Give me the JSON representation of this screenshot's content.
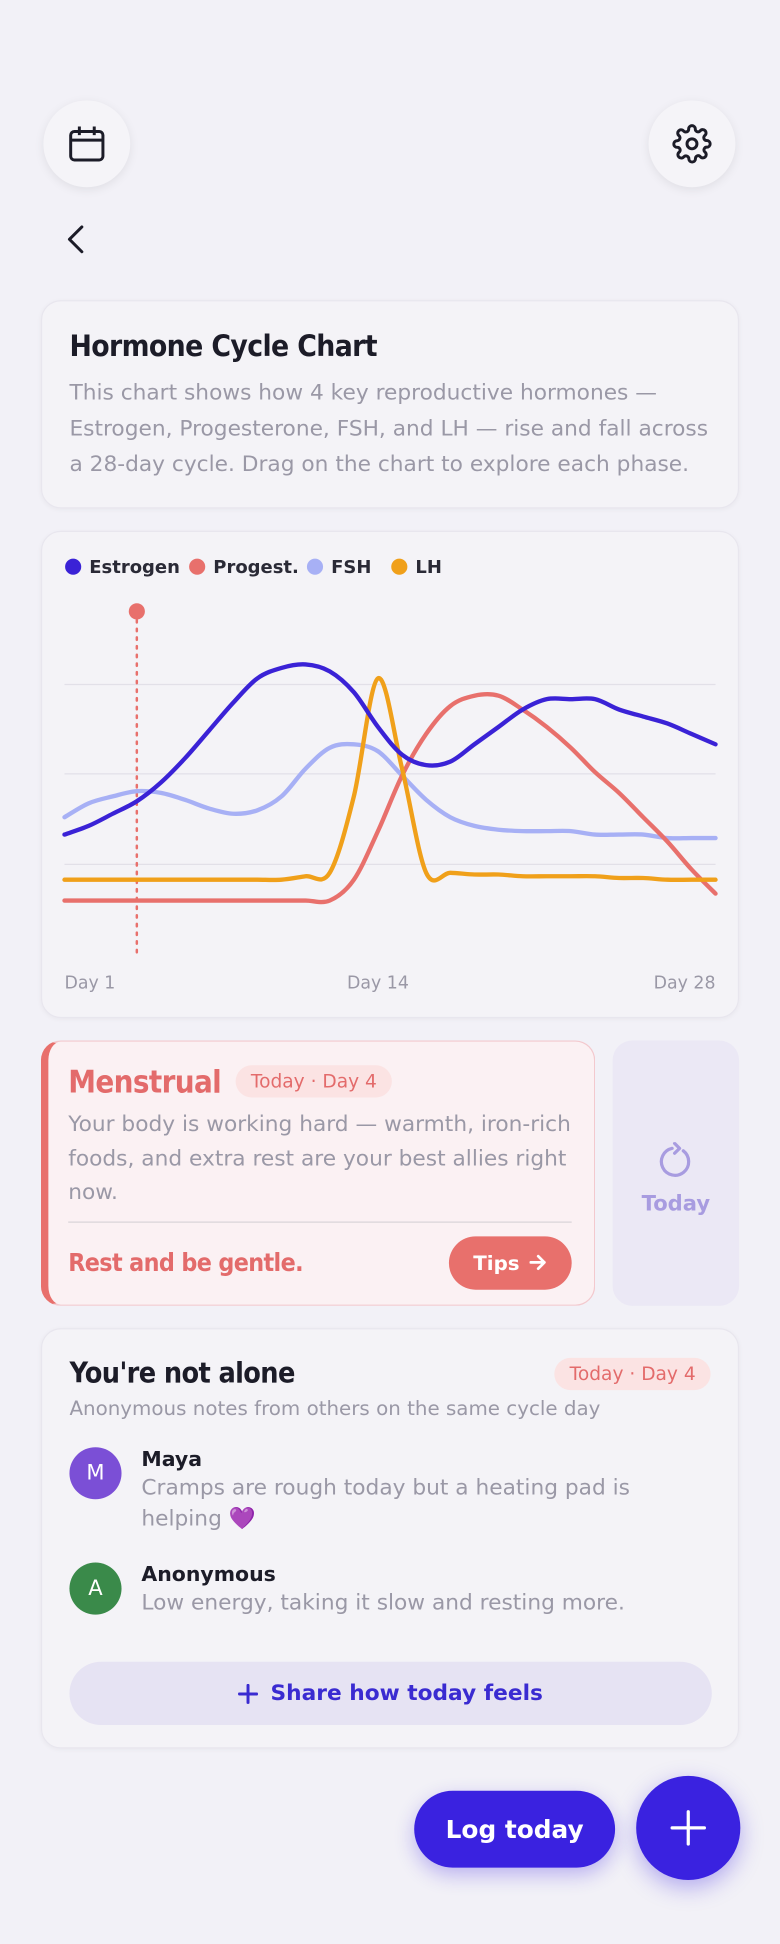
{
  "header": {
    "title": "Hormone Cycle Chart",
    "description": "This chart shows how 4 key reproductive hormones — Estrogen, Progesterone, FSH, and LH — rise and fall across a 28-day cycle. Drag on the chart to explore each phase."
  },
  "chart_data": {
    "type": "line",
    "x": [
      1,
      2,
      3,
      4,
      5,
      6,
      7,
      8,
      9,
      10,
      11,
      12,
      13,
      14,
      15,
      16,
      17,
      18,
      19,
      20,
      21,
      22,
      23,
      24,
      25,
      26,
      27,
      28
    ],
    "xlim": [
      1,
      28
    ],
    "xticks": [
      {
        "value": 1,
        "label": "Day 1"
      },
      {
        "value": 14,
        "label": "Day 14"
      },
      {
        "value": 28,
        "label": "Day 28"
      }
    ],
    "ylim": [
      0,
      100
    ],
    "marker": 4,
    "series": [
      {
        "name": "Estrogen",
        "color": "#3a22d6",
        "values": [
          35,
          37.5,
          41,
          44.6,
          50,
          57,
          65,
          73,
          80,
          83,
          84,
          82,
          76,
          66,
          58,
          55,
          56,
          61,
          66,
          71,
          74,
          74,
          74,
          71,
          69,
          67,
          64,
          61
        ]
      },
      {
        "name": "Progest.",
        "color": "#e8706c",
        "values": [
          16,
          16,
          16,
          16,
          16,
          16,
          16,
          16,
          16,
          16,
          16,
          16,
          22,
          36,
          52,
          64,
          72,
          75,
          75,
          71,
          66,
          60,
          53,
          47,
          40,
          33,
          25,
          18
        ]
      },
      {
        "name": "FSH",
        "color": "#a7b0f5",
        "values": [
          40,
          44,
          46,
          47.5,
          47,
          45,
          42.5,
          41,
          42,
          46,
          54,
          60,
          61,
          59,
          52,
          45,
          40,
          37.5,
          36.4,
          36,
          36,
          36,
          35,
          35,
          35,
          34,
          34,
          34
        ]
      },
      {
        "name": "LH",
        "color": "#f0a01a",
        "values": [
          22,
          22,
          22,
          22,
          22,
          22,
          22,
          22,
          22,
          22,
          23,
          24,
          46,
          80,
          54,
          24,
          24,
          23.5,
          23.5,
          23,
          23,
          23,
          23,
          22.5,
          22.5,
          22,
          22,
          22
        ]
      }
    ]
  },
  "phase": {
    "name": "Menstrual",
    "badge": "Today · Day 4",
    "description": "Your body is working hard — warmth, iron-rich foods, and extra rest are your best allies right now.",
    "tagline": "Rest and be gentle.",
    "button": "Tips"
  },
  "today_button": "Today",
  "community": {
    "title": "You're not alone",
    "badge": "Today · Day 4",
    "subtitle": "Anonymous notes from others on the same cycle day",
    "notes": [
      {
        "initial": "M",
        "author": "Maya",
        "text": "Cramps are rough today but a heating pad is helping 💜"
      },
      {
        "initial": "A",
        "author": "Anonymous",
        "text": "Low energy, taking it slow and resting more."
      }
    ],
    "share_button": "Share how today feels"
  },
  "actions": {
    "log_button": "Log today"
  }
}
